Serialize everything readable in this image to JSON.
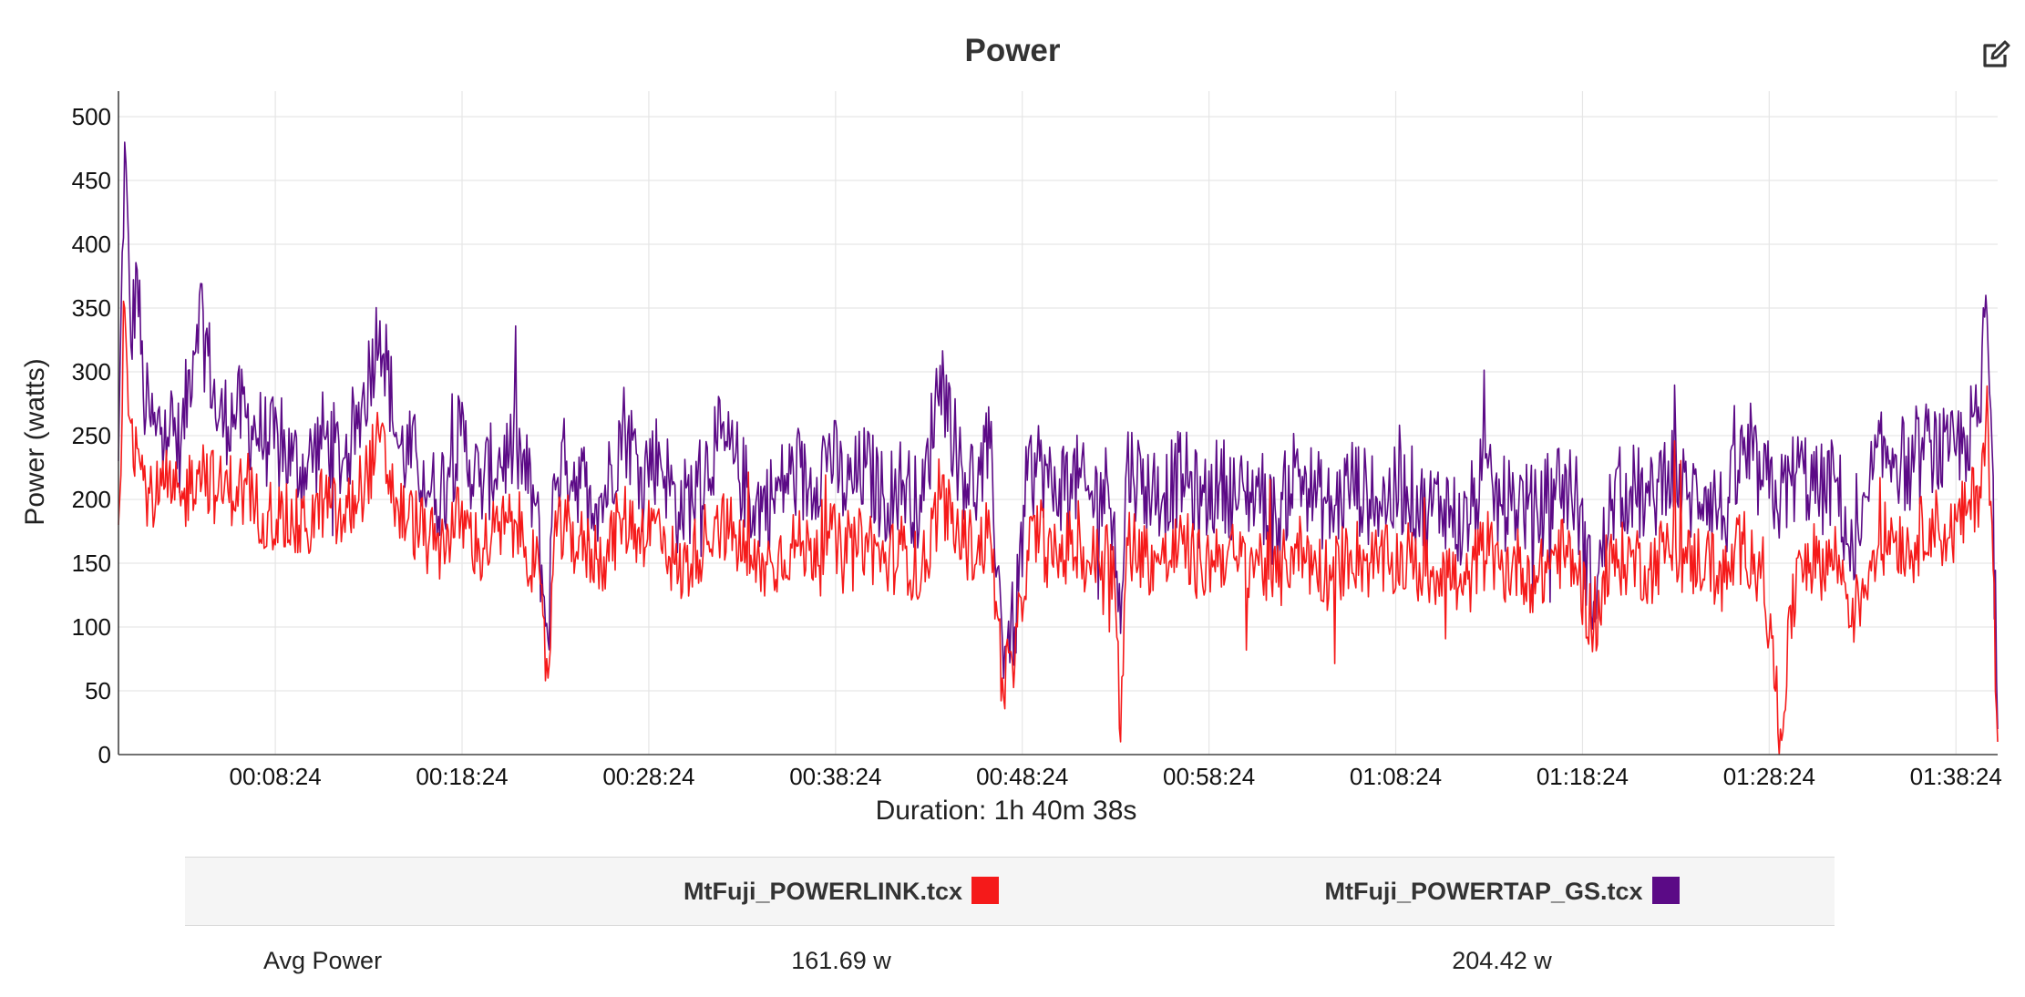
{
  "chart_data": {
    "type": "line",
    "title": "Power",
    "ylabel": "Power (watts)",
    "xlabel": "Duration: 1h 40m 38s",
    "ylim": [
      0,
      520
    ],
    "xlim_seconds": [
      0,
      6038
    ],
    "y_ticks": [
      0,
      50,
      100,
      150,
      200,
      250,
      300,
      350,
      400,
      450,
      500
    ],
    "x_ticks": [
      "00:08:24",
      "00:18:24",
      "00:28:24",
      "00:38:24",
      "00:48:24",
      "00:58:24",
      "01:08:24",
      "01:18:24",
      "01:28:24",
      "01:38:24"
    ],
    "grid": true,
    "series": [
      {
        "name": "MtFuji_POWERTAP_GS.tcx",
        "color": "#5b0a86",
        "x_seconds": [
          0,
          20,
          40,
          60,
          80,
          100,
          120,
          150,
          200,
          260,
          320,
          380,
          440,
          480,
          520,
          560,
          600,
          660,
          720,
          780,
          840,
          900,
          960,
          1020,
          1060,
          1100,
          1160,
          1220,
          1280,
          1340,
          1380,
          1400,
          1440,
          1500,
          1560,
          1620,
          1680,
          1740,
          1800,
          1860,
          1920,
          1980,
          2040,
          2100,
          2160,
          2220,
          2280,
          2340,
          2400,
          2460,
          2520,
          2580,
          2640,
          2700,
          2760,
          2800,
          2840,
          2880,
          2920,
          2960,
          3000,
          3060,
          3120,
          3180,
          3200,
          3220,
          3240,
          3300,
          3360,
          3420,
          3480,
          3540,
          3600,
          3660,
          3720,
          3780,
          3840,
          3900,
          3960,
          4020,
          4080,
          4140,
          4200,
          4260,
          4320,
          4380,
          4440,
          4500,
          4560,
          4620,
          4680,
          4740,
          4800,
          4860,
          4920,
          4980,
          5040,
          5100,
          5160,
          5220,
          5280,
          5340,
          5400,
          5460,
          5520,
          5580,
          5640,
          5700,
          5760,
          5820,
          5880,
          5940,
          5980,
          6000,
          6020,
          6038
        ],
        "values": [
          230,
          480,
          320,
          380,
          280,
          265,
          250,
          270,
          240,
          360,
          260,
          270,
          255,
          245,
          240,
          230,
          225,
          250,
          230,
          270,
          340,
          240,
          230,
          200,
          225,
          250,
          210,
          230,
          240,
          195,
          90,
          220,
          230,
          210,
          200,
          260,
          225,
          235,
          190,
          210,
          245,
          230,
          195,
          200,
          220,
          210,
          240,
          205,
          225,
          200,
          215,
          190,
          305,
          230,
          210,
          240,
          90,
          100,
          215,
          230,
          205,
          220,
          200,
          210,
          190,
          95,
          230,
          210,
          205,
          220,
          195,
          215,
          200,
          210,
          180,
          225,
          205,
          190,
          215,
          200,
          200,
          210,
          190,
          200,
          175,
          215,
          195,
          200,
          185,
          215,
          205,
          120,
          200,
          210,
          195,
          230,
          200,
          210,
          185,
          235,
          215,
          200,
          225,
          205,
          215,
          140,
          225,
          240,
          220,
          245,
          230,
          250,
          260,
          360,
          240,
          20
        ]
      },
      {
        "name": "MtFuji_POWERLINK.tcx",
        "color": "#f51a1a",
        "x_seconds": [
          0,
          20,
          40,
          60,
          80,
          100,
          120,
          150,
          200,
          260,
          320,
          380,
          440,
          480,
          520,
          560,
          600,
          660,
          720,
          780,
          840,
          900,
          960,
          1020,
          1060,
          1100,
          1160,
          1220,
          1280,
          1340,
          1380,
          1400,
          1440,
          1500,
          1560,
          1620,
          1680,
          1740,
          1800,
          1860,
          1920,
          1980,
          2040,
          2100,
          2160,
          2220,
          2280,
          2340,
          2400,
          2460,
          2520,
          2580,
          2640,
          2700,
          2760,
          2800,
          2840,
          2880,
          2920,
          2960,
          3000,
          3060,
          3120,
          3180,
          3200,
          3220,
          3240,
          3300,
          3360,
          3420,
          3480,
          3540,
          3600,
          3660,
          3720,
          3780,
          3840,
          3900,
          3960,
          4020,
          4080,
          4140,
          4200,
          4260,
          4320,
          4380,
          4440,
          4500,
          4560,
          4620,
          4680,
          4740,
          4800,
          4860,
          4920,
          4980,
          5040,
          5100,
          5160,
          5220,
          5280,
          5340,
          5400,
          5460,
          5520,
          5580,
          5640,
          5700,
          5760,
          5820,
          5880,
          5940,
          5980,
          6000,
          6020,
          6038
        ],
        "values": [
          180,
          350,
          260,
          240,
          215,
          205,
          200,
          210,
          195,
          230,
          205,
          210,
          195,
          190,
          185,
          180,
          175,
          200,
          180,
          210,
          245,
          190,
          180,
          160,
          175,
          185,
          160,
          175,
          180,
          150,
          60,
          170,
          175,
          160,
          155,
          185,
          175,
          180,
          140,
          160,
          185,
          170,
          145,
          150,
          165,
          160,
          175,
          150,
          170,
          150,
          160,
          140,
          200,
          170,
          160,
          175,
          60,
          70,
          160,
          175,
          150,
          165,
          150,
          160,
          140,
          10,
          170,
          155,
          150,
          165,
          145,
          160,
          150,
          155,
          135,
          165,
          150,
          140,
          160,
          150,
          150,
          155,
          140,
          150,
          125,
          160,
          145,
          150,
          135,
          160,
          150,
          100,
          150,
          155,
          145,
          165,
          150,
          155,
          135,
          165,
          150,
          20,
          160,
          150,
          155,
          110,
          160,
          175,
          160,
          185,
          170,
          190,
          210,
          260,
          180,
          10
        ]
      }
    ],
    "summary": {
      "metric": "Avg Power",
      "values": [
        "161.69 w",
        "204.42 w"
      ]
    }
  },
  "table": {
    "headers": [
      {
        "label": "MtFuji_POWERLINK.tcx",
        "color": "#f51a1a"
      },
      {
        "label": "MtFuji_POWERTAP_GS.tcx",
        "color": "#5b0a86"
      }
    ],
    "rows": [
      {
        "metric": "Avg Power",
        "values": [
          "161.69 w",
          "204.42 w"
        ]
      }
    ]
  },
  "icons": {
    "edit": "edit-icon"
  }
}
